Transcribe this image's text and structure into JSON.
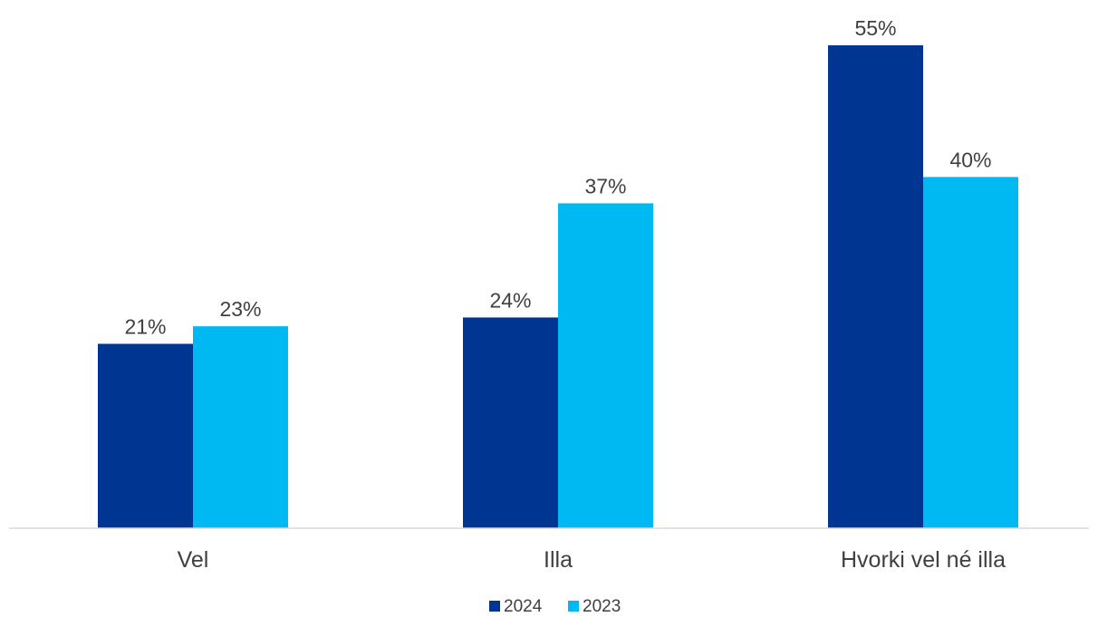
{
  "chart_data": {
    "type": "bar",
    "title": "",
    "xlabel": "",
    "ylabel": "",
    "categories": [
      "Vel",
      "Illa",
      "Hvorki vel né illa"
    ],
    "series": [
      {
        "name": "2024",
        "values": [
          21,
          24,
          55
        ],
        "labels": [
          "21%",
          "24%",
          "55%"
        ],
        "color": "#003591"
      },
      {
        "name": "2023",
        "values": [
          23,
          37,
          40
        ],
        "labels": [
          "23%",
          "37%",
          "40%"
        ],
        "color": "#00b9f2"
      }
    ],
    "ylim": [
      0,
      55
    ],
    "grid": false,
    "legend_position": "bottom"
  },
  "colors": {
    "axis": "#d9d9d9",
    "text": "#404040"
  }
}
